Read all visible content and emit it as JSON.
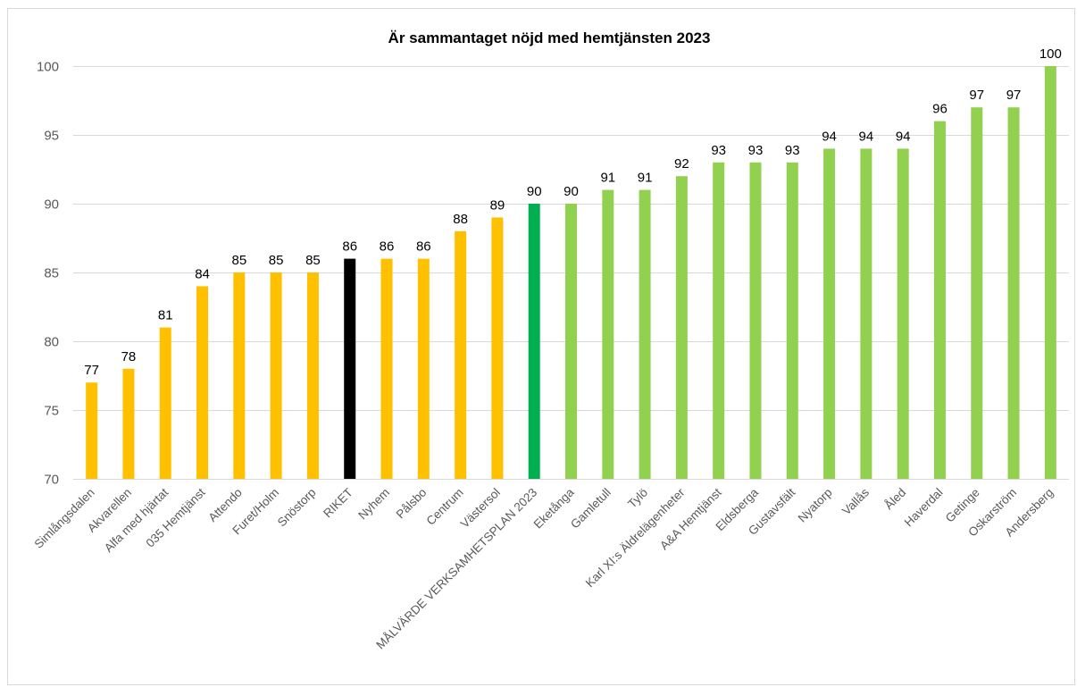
{
  "chart_data": {
    "type": "bar",
    "title": "Är sammantaget nöjd med hemtjänsten 2023",
    "xlabel": "",
    "ylabel": "",
    "ylim": [
      70,
      100
    ],
    "yticks": [
      70,
      75,
      80,
      85,
      90,
      95,
      100
    ],
    "grid": true,
    "legend": "none",
    "categories": [
      "Simlångsdalen",
      "Akvarellen",
      "Alfa med hjärtat",
      "035 Hemtjänst",
      "Attendo",
      "Furet/Holm",
      "Snöstorp",
      "RIKET",
      "Nyhem",
      "Pålsbo",
      "Centrum",
      "Västersol",
      "MÅLVÄRDE VERKSAMHETSPLAN 2023",
      "Eketånga",
      "Gamletull",
      "Tylö",
      "Karl XI:s Äldrelägenheter",
      "A&A Hemtjänst",
      "Eldsberga",
      "Gustavsfält",
      "Nyatorp",
      "Vallås",
      "Åled",
      "Haverdal",
      "Getinge",
      "Oskarström",
      "Andersberg"
    ],
    "values": [
      77,
      78,
      81,
      84,
      85,
      85,
      85,
      86,
      86,
      86,
      88,
      89,
      90,
      90,
      91,
      91,
      92,
      93,
      93,
      93,
      94,
      94,
      94,
      96,
      97,
      97,
      100
    ],
    "colors": [
      "#ffc000",
      "#ffc000",
      "#ffc000",
      "#ffc000",
      "#ffc000",
      "#ffc000",
      "#ffc000",
      "#000000",
      "#ffc000",
      "#ffc000",
      "#ffc000",
      "#ffc000",
      "#00b050",
      "#92d050",
      "#92d050",
      "#92d050",
      "#92d050",
      "#92d050",
      "#92d050",
      "#92d050",
      "#92d050",
      "#92d050",
      "#92d050",
      "#92d050",
      "#92d050",
      "#92d050",
      "#92d050"
    ]
  }
}
